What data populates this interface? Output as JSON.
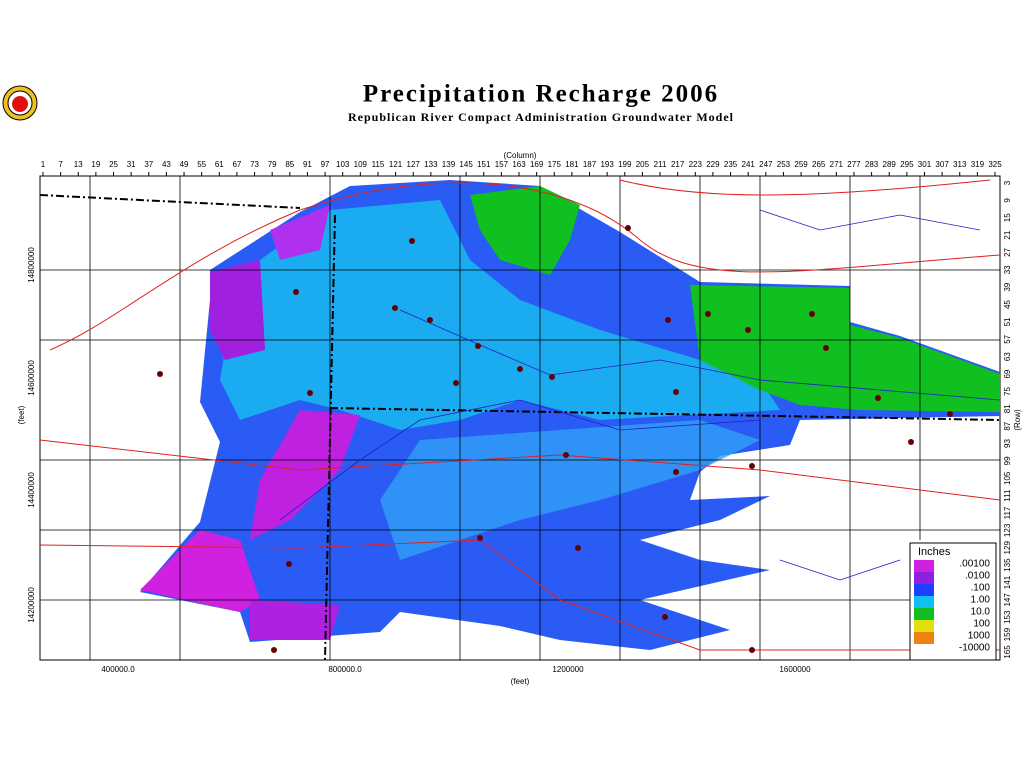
{
  "header": {
    "title": "Precipitation Recharge 2006",
    "subtitle": "Republican River Compact Administration Groundwater Model"
  },
  "axes": {
    "top_label": "(Column)",
    "columns": [
      1,
      7,
      13,
      19,
      25,
      31,
      37,
      43,
      49,
      55,
      61,
      67,
      73,
      79,
      85,
      91,
      97,
      103,
      109,
      115,
      121,
      127,
      133,
      139,
      145,
      151,
      157,
      163,
      169,
      175,
      181,
      187,
      193,
      199,
      205,
      211,
      217,
      223,
      229,
      235,
      241,
      247,
      253,
      259,
      265,
      271,
      277,
      283,
      289,
      295,
      301,
      307,
      313,
      319,
      325
    ],
    "right_label": "(Row)",
    "rows": [
      3,
      9,
      15,
      21,
      27,
      33,
      39,
      45,
      51,
      57,
      63,
      69,
      75,
      81,
      87,
      93,
      99,
      105,
      111,
      117,
      123,
      129,
      135,
      141,
      147,
      153,
      159,
      165
    ],
    "left_label": "(feet)",
    "left_ticks": [
      "14800000",
      "14600000",
      "14400000",
      "14200000"
    ],
    "bottom_label": "(feet)",
    "bottom_ticks": [
      "400000.0",
      "800000.0",
      "1200000",
      "1600000"
    ]
  },
  "legend": {
    "title": "Inches",
    "entries": [
      {
        "label": ".00100",
        "color": "#d020e0"
      },
      {
        "label": ".0100",
        "color": "#9020e0"
      },
      {
        "label": ".100",
        "color": "#2040ff"
      },
      {
        "label": "1.00",
        "color": "#10c0f0"
      },
      {
        "label": "10.0",
        "color": "#10c020"
      },
      {
        "label": "100",
        "color": "#e0e010"
      },
      {
        "label": "1000",
        "color": "#f08010"
      },
      {
        "label": "-10000",
        "color": "#ffffff"
      }
    ]
  }
}
